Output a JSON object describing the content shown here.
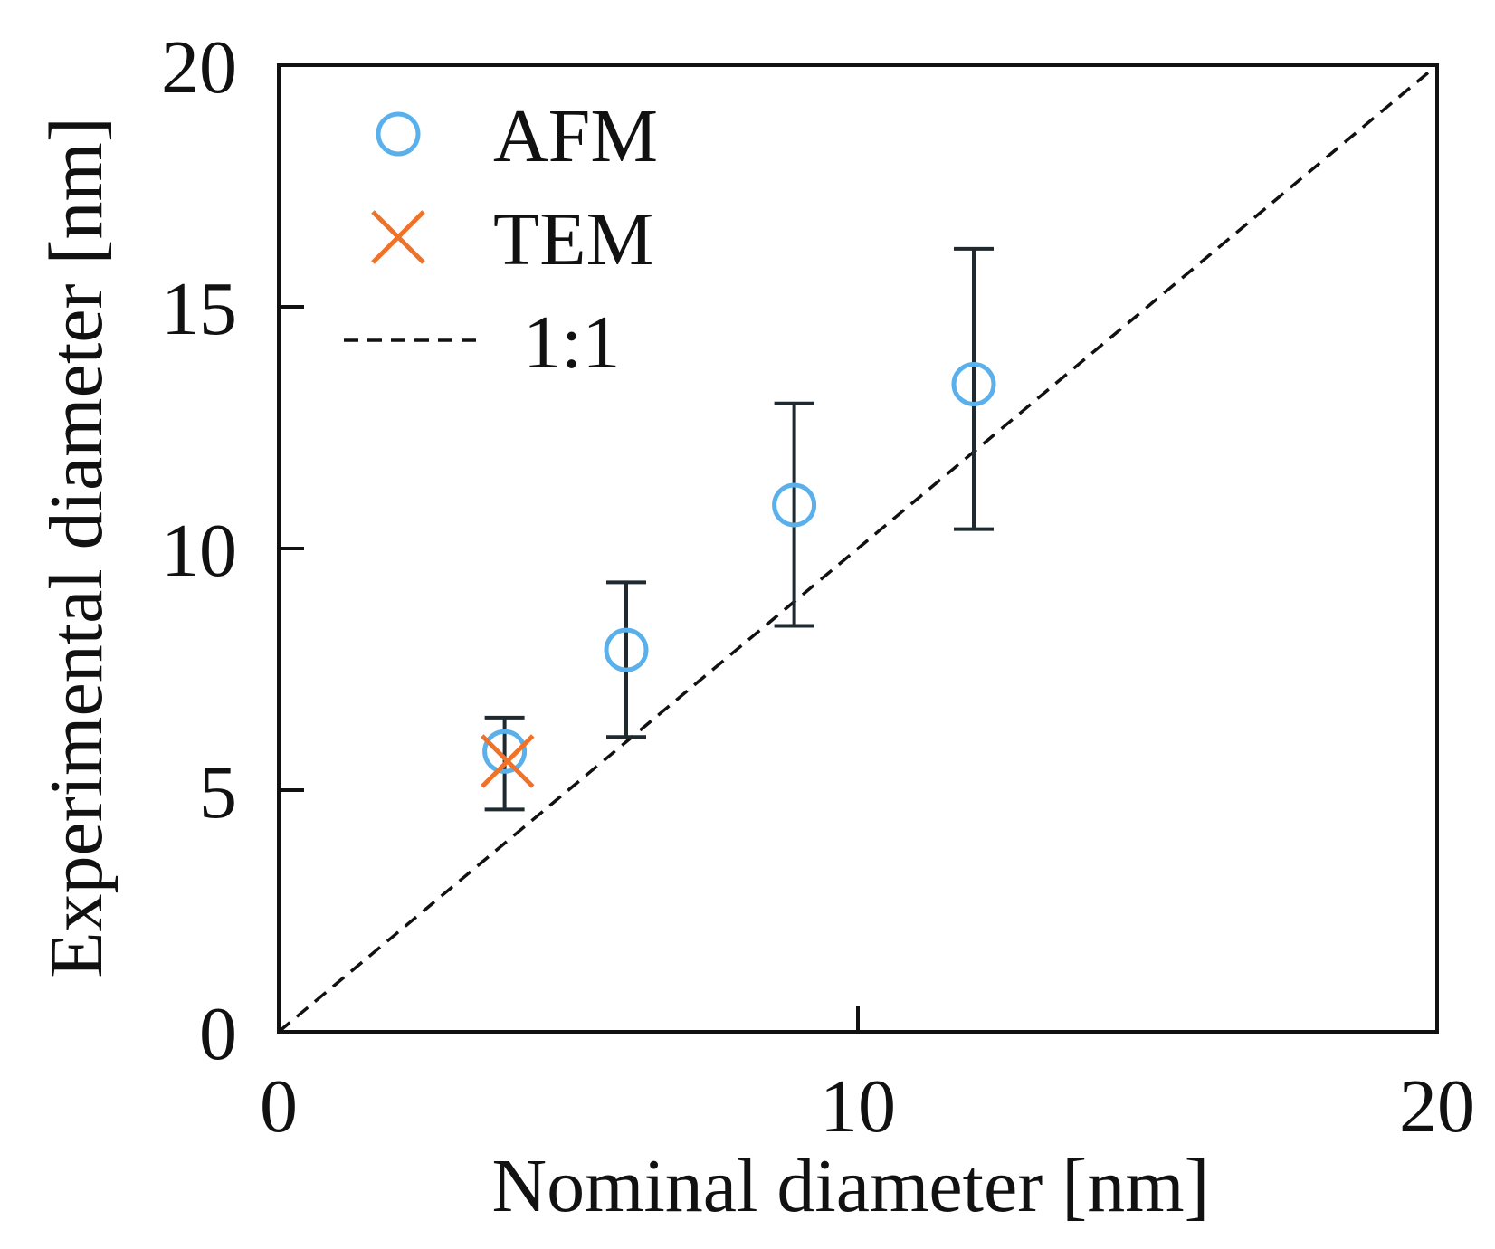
{
  "chart_data": {
    "type": "scatter",
    "title": "",
    "xlabel": "Nominal diameter [nm]",
    "ylabel": "Experimental diameter [nm]",
    "xlim": [
      0,
      20
    ],
    "ylim": [
      0,
      20
    ],
    "xticks": [
      0,
      10,
      20
    ],
    "xtick_labels": [
      "0",
      "10",
      "20"
    ],
    "yticks": [
      0,
      5,
      10,
      15,
      20
    ],
    "ytick_labels": [
      "0",
      "5",
      "10",
      "15",
      "20"
    ],
    "grid": false,
    "legend_position": "top-left",
    "series": [
      {
        "name": "AFM",
        "marker": "open-circle",
        "color": "#5ab0ea",
        "points": [
          {
            "x": 3.9,
            "y": 5.8,
            "err_low": 4.6,
            "err_high": 6.5
          },
          {
            "x": 6.0,
            "y": 7.9,
            "err_low": 6.1,
            "err_high": 9.3
          },
          {
            "x": 8.9,
            "y": 10.9,
            "err_low": 8.4,
            "err_high": 13.0
          },
          {
            "x": 12.0,
            "y": 13.4,
            "err_low": 10.4,
            "err_high": 16.2
          }
        ]
      },
      {
        "name": "TEM",
        "marker": "x",
        "color": "#f07228",
        "points": [
          {
            "x": 3.95,
            "y": 5.6
          }
        ]
      },
      {
        "name": "1:1",
        "marker": "dashed-line",
        "color": "#111111",
        "points": [
          {
            "x": 0,
            "y": 0
          },
          {
            "x": 20,
            "y": 20
          }
        ]
      }
    ],
    "errorbar_color": "#1e2a30"
  }
}
